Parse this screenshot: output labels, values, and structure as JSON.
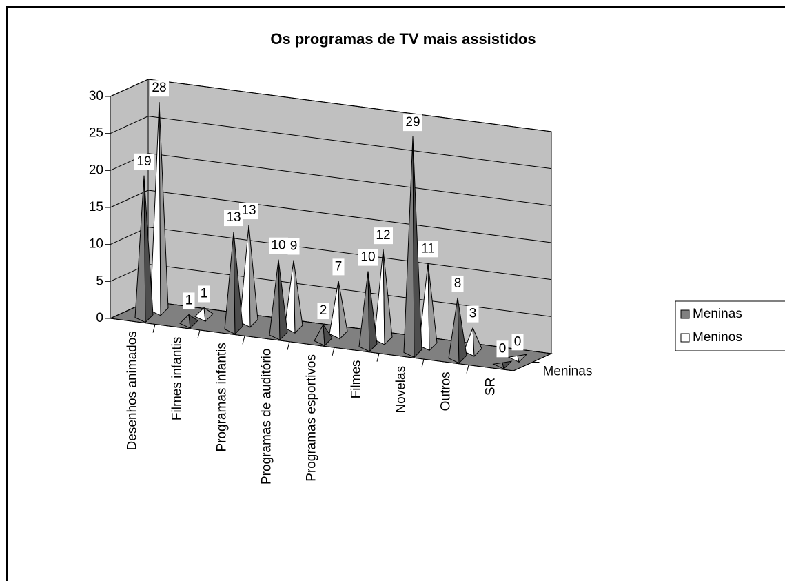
{
  "chart_data": {
    "type": "pyramid3d",
    "title": "Os programas de TV mais assistidos",
    "categories": [
      "Desenhos animados",
      "Filmes infantis",
      "Programas infantis",
      "Programas de auditório",
      "Programas esportivos",
      "Filmes",
      "Novelas",
      "Outros",
      "SR"
    ],
    "series": [
      {
        "name": "Meninas",
        "color": "#808080",
        "values": [
          19,
          1,
          13,
          10,
          2,
          10,
          29,
          8,
          0
        ]
      },
      {
        "name": "Meninos",
        "color": "#ffffff",
        "values": [
          28,
          1,
          13,
          9,
          7,
          12,
          11,
          3,
          0
        ]
      }
    ],
    "depth_label": "Meninas",
    "ylim": [
      0,
      30
    ],
    "yticks": [
      0,
      5,
      10,
      15,
      20,
      25,
      30
    ],
    "grid": true,
    "legend": "right"
  }
}
